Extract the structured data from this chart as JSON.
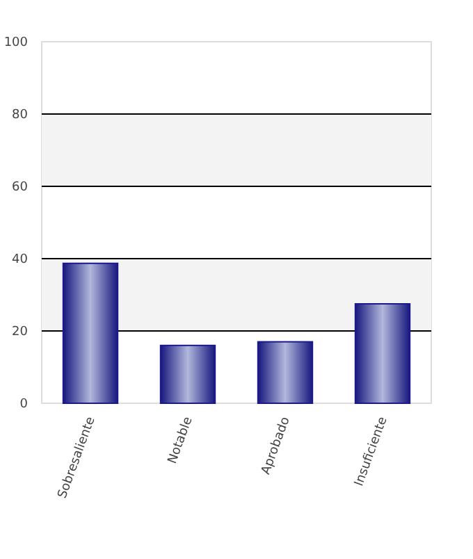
{
  "chart_data": {
    "type": "bar",
    "categories": [
      "Sobresaliente",
      "Notable",
      "Aprobado",
      "Insuficiente"
    ],
    "values": [
      38.7,
      16,
      17,
      27.5
    ],
    "color": "#1a1a8c",
    "ylim": [
      0,
      100
    ],
    "yticks": [
      0,
      20,
      40,
      60,
      80,
      100
    ],
    "grid": "y"
  }
}
